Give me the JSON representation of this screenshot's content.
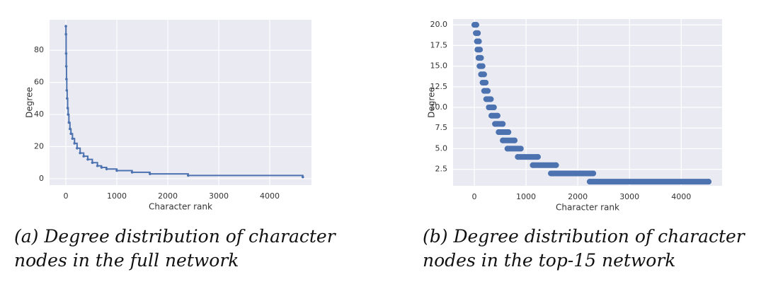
{
  "chart_data": [
    {
      "type": "line",
      "drawstyle": "steps-post",
      "color": "#4c72b0",
      "xlabel": "Character rank",
      "ylabel": "Degree",
      "caption": [
        "(a) Degree distribution of character",
        "nodes in the full network"
      ],
      "x": [
        0,
        2,
        5,
        8,
        12,
        18,
        25,
        35,
        45,
        60,
        80,
        100,
        130,
        170,
        220,
        280,
        350,
        430,
        520,
        620,
        700,
        800,
        1000,
        1300,
        1650,
        2400,
        4650
      ],
      "values": [
        95,
        90,
        78,
        70,
        62,
        55,
        50,
        44,
        40,
        35,
        31,
        28,
        25,
        22,
        19,
        16,
        14,
        12,
        10,
        8,
        7,
        6,
        5,
        4,
        3,
        2,
        1
      ],
      "xlim": [
        -320,
        4820
      ],
      "ylim": [
        -4,
        99
      ],
      "xticks": [
        0,
        1000,
        2000,
        3000,
        4000
      ],
      "yticks": [
        0,
        20,
        40,
        60,
        80
      ],
      "grid": true
    },
    {
      "type": "scatter",
      "color": "#4c72b0",
      "xlabel": "Character rank",
      "ylabel": "Degree",
      "caption": [
        "(b) Degree distribution of character",
        "nodes in the top-15 network"
      ],
      "x": [
        0,
        40,
        30,
        70,
        50,
        90,
        60,
        110,
        80,
        130,
        100,
        160,
        130,
        190,
        160,
        220,
        190,
        260,
        230,
        320,
        280,
        380,
        330,
        450,
        400,
        550,
        470,
        660,
        550,
        780,
        640,
        900,
        840,
        1230,
        1130,
        1580,
        1480,
        2300,
        2230,
        4530
      ],
      "values": [
        20,
        20,
        19,
        19,
        18,
        18,
        17,
        17,
        16,
        16,
        15,
        15,
        14,
        14,
        13,
        13,
        12,
        12,
        11,
        11,
        10,
        10,
        9,
        9,
        8,
        8,
        7,
        7,
        6,
        6,
        5,
        5,
        4,
        4,
        3,
        3,
        2,
        2,
        1,
        1
      ],
      "xlim": [
        -410,
        4790
      ],
      "ylim": [
        0.5,
        20.7
      ],
      "xticks": [
        0,
        1000,
        2000,
        3000,
        4000
      ],
      "yticks": [
        2.5,
        {
          "value": 5,
          "label": "5.0"
        },
        7.5,
        {
          "value": 10,
          "label": "10.0"
        },
        12.5,
        {
          "value": 15,
          "label": "15.0"
        },
        17.5,
        {
          "value": 20,
          "label": "20.0"
        }
      ],
      "grid": true
    }
  ]
}
